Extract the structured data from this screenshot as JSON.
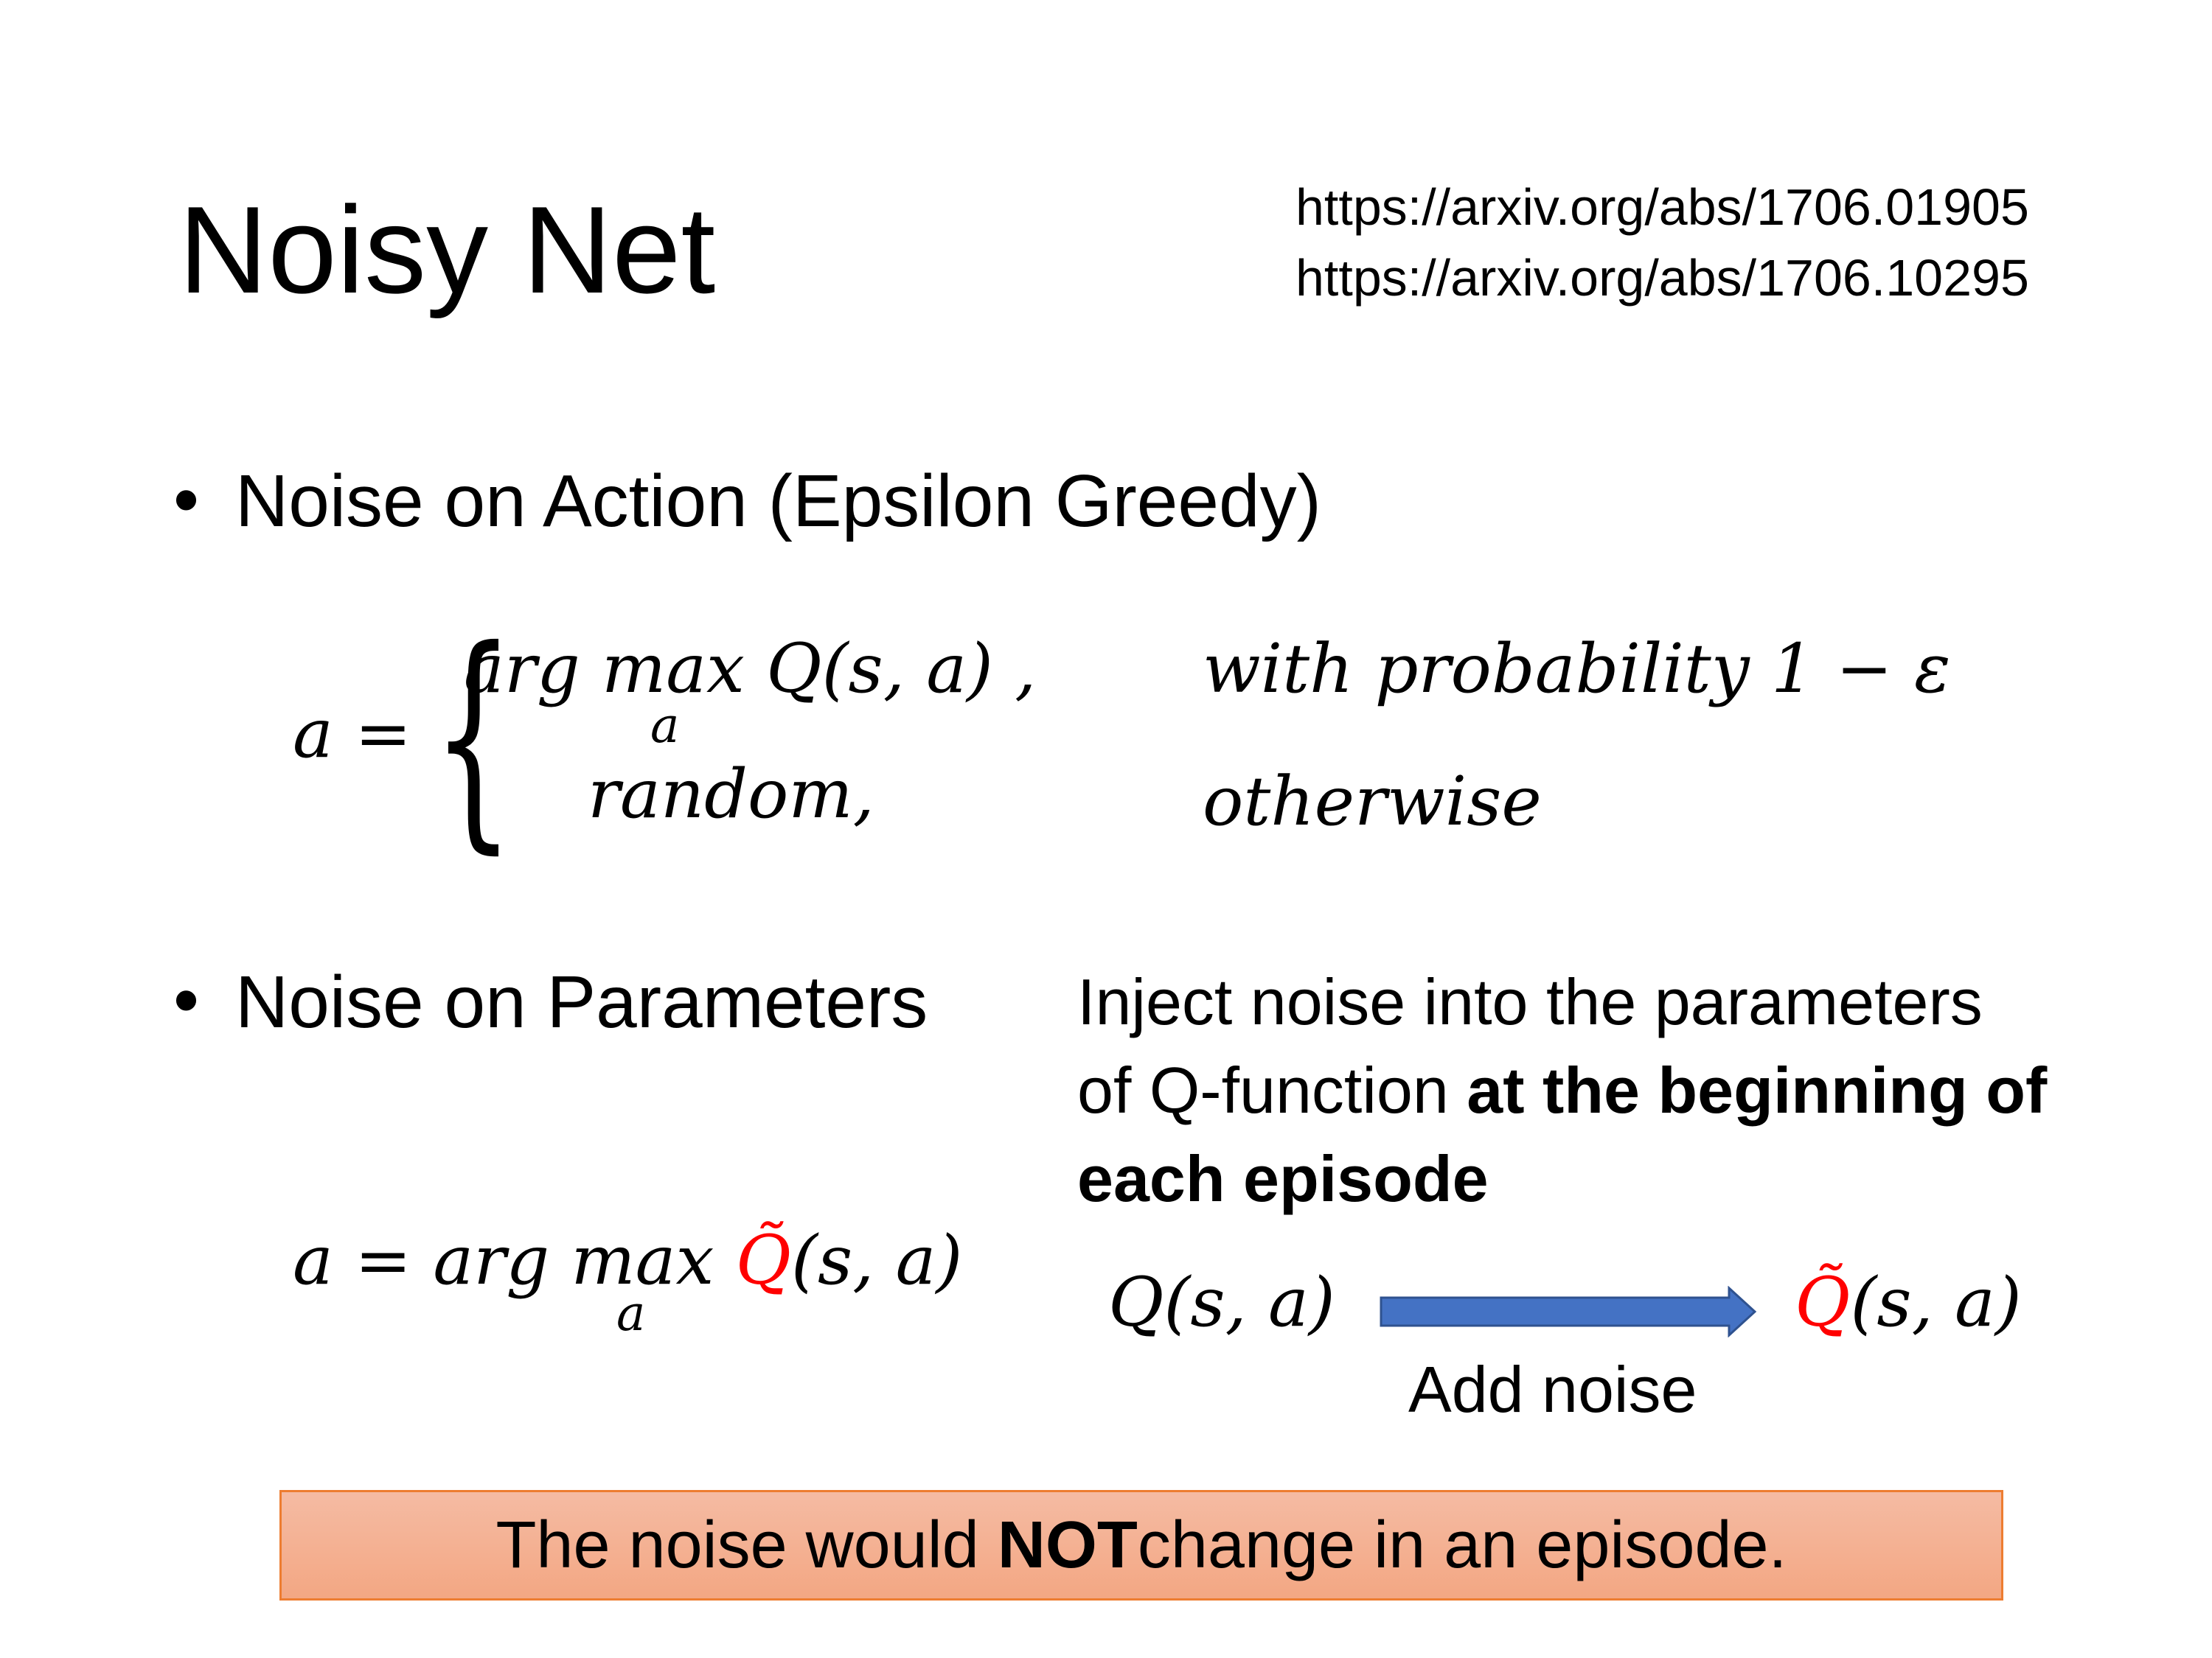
{
  "title": "Noisy Net",
  "links": [
    "https://arxiv.org/abs/1706.01905",
    "https://arxiv.org/abs/1706.10295"
  ],
  "bullets": [
    {
      "text": "Noise on Action (Epsilon Greedy)"
    },
    {
      "text": "Noise on Parameters"
    }
  ],
  "formula1": {
    "lhs": "a =",
    "case1": "arg max Q(s, a) ,",
    "case1_sub": "a",
    "case1_cond": "with probability 1 − ε",
    "case2": "random,",
    "case2_cond": "otherwise"
  },
  "formula2": {
    "lhs": "a = arg max ",
    "sub": "a",
    "qtilde": "Q̃",
    "args": "(s, a)"
  },
  "description": {
    "line1": "Inject noise into the parameters",
    "line2_plain": "of Q-function ",
    "line2_bold": "at the beginning of",
    "line3_bold": "each episode"
  },
  "diagram": {
    "from": "Q(s, a)",
    "to_q": "Q̃",
    "to_args": "(s, a)",
    "arrow_label": "Add noise",
    "arrow_color": "#4472c4"
  },
  "callout": {
    "pre": "The noise would ",
    "bold": "NOT",
    "post": " change in an episode.",
    "fill": "#f4b183",
    "border": "#ed7d31"
  },
  "colors": {
    "highlight": "#ff0000"
  }
}
